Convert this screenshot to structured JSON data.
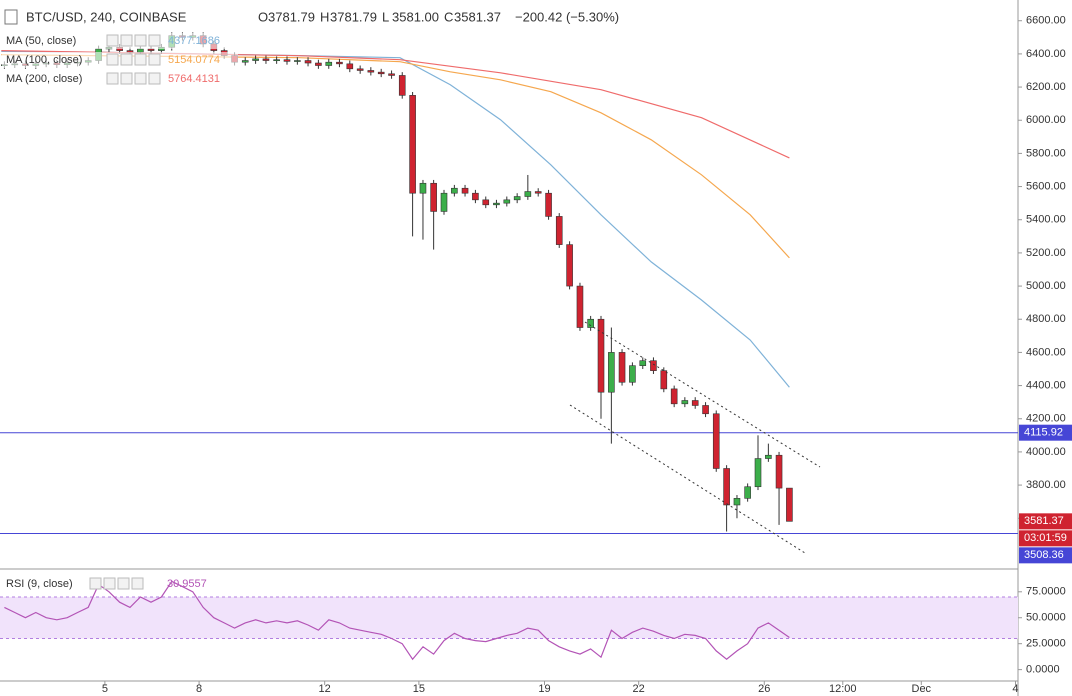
{
  "chart_data": {
    "type": "candlestick",
    "title": "BTC/USD, 240, COINBASE",
    "ohlc_header": [
      {
        "label": "O",
        "value": "3781.79"
      },
      {
        "label": "H",
        "value": "3781.79"
      },
      {
        "label": "L",
        "value": "3581.00"
      },
      {
        "label": "C",
        "value": "3581.37"
      }
    ],
    "change": "−200.42 (−5.30%)",
    "up_color": "#3cae4a",
    "down_color": "#cf2330",
    "x": [
      1.8,
      2.13,
      2.47,
      2.8,
      3.13,
      3.47,
      3.8,
      4.13,
      4.47,
      4.8,
      5.13,
      5.47,
      5.8,
      6.13,
      6.47,
      6.8,
      7.13,
      7.47,
      7.8,
      8.13,
      8.47,
      8.8,
      9.13,
      9.47,
      9.8,
      10.13,
      10.47,
      10.8,
      11.13,
      11.47,
      11.8,
      12.13,
      12.47,
      12.8,
      13.13,
      13.47,
      13.8,
      14.13,
      14.47,
      14.8,
      15.13,
      15.47,
      15.8,
      16.13,
      16.47,
      16.8,
      17.13,
      17.47,
      17.8,
      18.13,
      18.47,
      18.8,
      19.13,
      19.47,
      19.8,
      20.13,
      20.47,
      20.8,
      21.13,
      21.47,
      21.8,
      22.13,
      22.47,
      22.8,
      23.13,
      23.47,
      23.8,
      24.13,
      24.47,
      24.8,
      25.13,
      25.47,
      25.8,
      26.13,
      26.47,
      26.8
    ],
    "open": [
      6330,
      6335,
      6340,
      6330,
      6340,
      6345,
      6335,
      6345,
      6350,
      6360,
      6430,
      6440,
      6420,
      6410,
      6430,
      6420,
      6440,
      6510,
      6500,
      6510,
      6460,
      6420,
      6390,
      6350,
      6360,
      6370,
      6360,
      6365,
      6355,
      6360,
      6345,
      6330,
      6350,
      6340,
      6310,
      6300,
      6290,
      6280,
      6270,
      6150,
      5560,
      5620,
      5450,
      5560,
      5590,
      5560,
      5520,
      5490,
      5500,
      5520,
      5540,
      5570,
      5560,
      5420,
      5250,
      5000,
      4750,
      4800,
      4360,
      4600,
      4420,
      4520,
      4550,
      4490,
      4380,
      4290,
      4310,
      4280,
      4230,
      3900,
      3680,
      3720,
      3790,
      3960,
      3980,
      3781.79
    ],
    "high": [
      6355,
      6360,
      6360,
      6360,
      6365,
      6365,
      6365,
      6370,
      6380,
      6450,
      6460,
      6460,
      6440,
      6450,
      6450,
      6460,
      6530,
      6530,
      6530,
      6530,
      6480,
      6440,
      6410,
      6380,
      6390,
      6390,
      6385,
      6385,
      6380,
      6380,
      6365,
      6370,
      6370,
      6360,
      6330,
      6320,
      6310,
      6300,
      6290,
      6170,
      5640,
      5640,
      5580,
      5610,
      5610,
      5580,
      5540,
      5520,
      5540,
      5560,
      5670,
      5590,
      5580,
      5440,
      5270,
      5020,
      4820,
      4820,
      4750,
      4620,
      4540,
      4570,
      4570,
      4510,
      4400,
      4330,
      4330,
      4300,
      4250,
      3920,
      3740,
      3810,
      4100,
      4050,
      4000,
      3781.79
    ],
    "low": [
      6310,
      6315,
      6310,
      6310,
      6320,
      6315,
      6315,
      6325,
      6330,
      6340,
      6410,
      6400,
      6390,
      6390,
      6400,
      6400,
      6420,
      6480,
      6480,
      6440,
      6400,
      6370,
      6330,
      6330,
      6340,
      6340,
      6340,
      6335,
      6335,
      6325,
      6310,
      6310,
      6320,
      6290,
      6280,
      6270,
      6260,
      6250,
      6130,
      5300,
      5280,
      5220,
      5430,
      5540,
      5540,
      5500,
      5470,
      5470,
      5480,
      5500,
      5520,
      5540,
      5400,
      5230,
      4980,
      4730,
      4730,
      4200,
      4050,
      4400,
      4400,
      4500,
      4470,
      4360,
      4270,
      4270,
      4260,
      4210,
      3880,
      3520,
      3600,
      3700,
      3770,
      3940,
      3560,
      3581.0
    ],
    "close": [
      6335,
      6340,
      6330,
      6340,
      6345,
      6335,
      6345,
      6350,
      6360,
      6430,
      6440,
      6420,
      6410,
      6430,
      6420,
      6440,
      6510,
      6500,
      6510,
      6460,
      6420,
      6390,
      6350,
      6360,
      6370,
      6360,
      6365,
      6355,
      6360,
      6345,
      6330,
      6350,
      6340,
      6310,
      6300,
      6290,
      6280,
      6270,
      6150,
      5560,
      5620,
      5450,
      5560,
      5590,
      5560,
      5520,
      5490,
      5500,
      5520,
      5540,
      5570,
      5560,
      5420,
      5250,
      5000,
      4750,
      4800,
      4360,
      4600,
      4420,
      4520,
      4550,
      4490,
      4380,
      4290,
      4310,
      4280,
      4230,
      3900,
      3680,
      3720,
      3790,
      3960,
      3980,
      3781.79,
      3581.37
    ],
    "xlim": [
      1.66,
      34.08
    ],
    "xticks": [
      5,
      8,
      12,
      15,
      19,
      22,
      26,
      {
        "value": 28.5,
        "label": "12:00"
      },
      {
        "value": 31,
        "label": "Dec"
      },
      {
        "value": 34,
        "label": "4"
      }
    ],
    "ylim": [
      3300,
      6725
    ],
    "yticks": [
      {
        "value": 3600,
        "label": "3600.00"
      },
      {
        "value": 3800,
        "label": "3800.00"
      },
      {
        "value": 4000,
        "label": "4000.00"
      },
      {
        "value": 4200,
        "label": "4200.00"
      },
      {
        "value": 4400,
        "label": "4400.00"
      },
      {
        "value": 4600,
        "label": "4600.00"
      },
      {
        "value": 4800,
        "label": "4800.00"
      },
      {
        "value": 5000,
        "label": "5000.00"
      },
      {
        "value": 5200,
        "label": "5200.00"
      },
      {
        "value": 5400,
        "label": "5400.00"
      },
      {
        "value": 5600,
        "label": "5600.00"
      },
      {
        "value": 5800,
        "label": "5800.00"
      },
      {
        "value": 6000,
        "label": "6000.00"
      },
      {
        "value": 6200,
        "label": "6200.00"
      },
      {
        "value": 6400,
        "label": "6400.00"
      },
      {
        "value": 6600,
        "label": "6600.00"
      }
    ],
    "moving_averages": [
      {
        "name": "MA (50, close)",
        "last": 4377.1686,
        "color": "#7fb2d8",
        "x": [
          1.7,
          4.85,
          8.0,
          11.2,
          14.4,
          16.0,
          17.6,
          19.2,
          20.8,
          22.4,
          24.0,
          25.55,
          26.8
        ],
        "values": [
          6415,
          6410,
          6400,
          6390,
          6377,
          6214,
          6003,
          5731,
          5430,
          5146,
          4916,
          4675,
          4390
        ]
      },
      {
        "name": "MA (100, close)",
        "last": 5154.0774,
        "color": "#f5a74e",
        "x": [
          1.7,
          11.2,
          14.4,
          16.0,
          17.6,
          19.2,
          20.8,
          22.4,
          24.0,
          25.55,
          26.8
        ],
        "values": [
          6395,
          6377,
          6353,
          6292,
          6244,
          6172,
          6045,
          5882,
          5671,
          5430,
          5170
        ]
      },
      {
        "name": "MA (200, close)",
        "last": 5764.4131,
        "color": "#ef6b6b",
        "x": [
          1.7,
          11.2,
          14.4,
          17.6,
          20.8,
          24.0,
          26.8
        ],
        "values": [
          6420,
          6389,
          6365,
          6286,
          6184,
          6015,
          5773
        ]
      }
    ],
    "hlines": [
      4115.92,
      3508.36
    ],
    "hline_color": "#4646d6",
    "last_price": 3581.37,
    "countdown": "03:01:59",
    "rsi": {
      "name": "RSI (9, close)",
      "last": 30.9557,
      "color": "#b354b6",
      "band": [
        30,
        70
      ],
      "band_color": "#f1e3fb",
      "ylim": [
        -10,
        96
      ],
      "yticks": [
        {
          "value": 0,
          "label": "0.0000"
        },
        {
          "value": 25,
          "label": "25.0000"
        },
        {
          "value": 50,
          "label": "50.0000"
        },
        {
          "value": 75,
          "label": "75.0000"
        }
      ],
      "values": [
        60,
        55,
        50,
        55,
        50,
        48,
        50,
        55,
        60,
        82,
        75,
        65,
        60,
        70,
        65,
        70,
        85,
        80,
        75,
        60,
        50,
        45,
        40,
        45,
        48,
        45,
        47,
        45,
        47,
        43,
        38,
        48,
        45,
        40,
        38,
        36,
        34,
        30,
        25,
        10,
        22,
        15,
        28,
        35,
        30,
        28,
        27,
        30,
        33,
        35,
        40,
        38,
        28,
        22,
        18,
        15,
        20,
        12,
        38,
        30,
        36,
        40,
        37,
        33,
        30,
        34,
        33,
        30,
        18,
        10,
        18,
        25,
        40,
        45,
        38,
        30.9557
      ]
    }
  }
}
